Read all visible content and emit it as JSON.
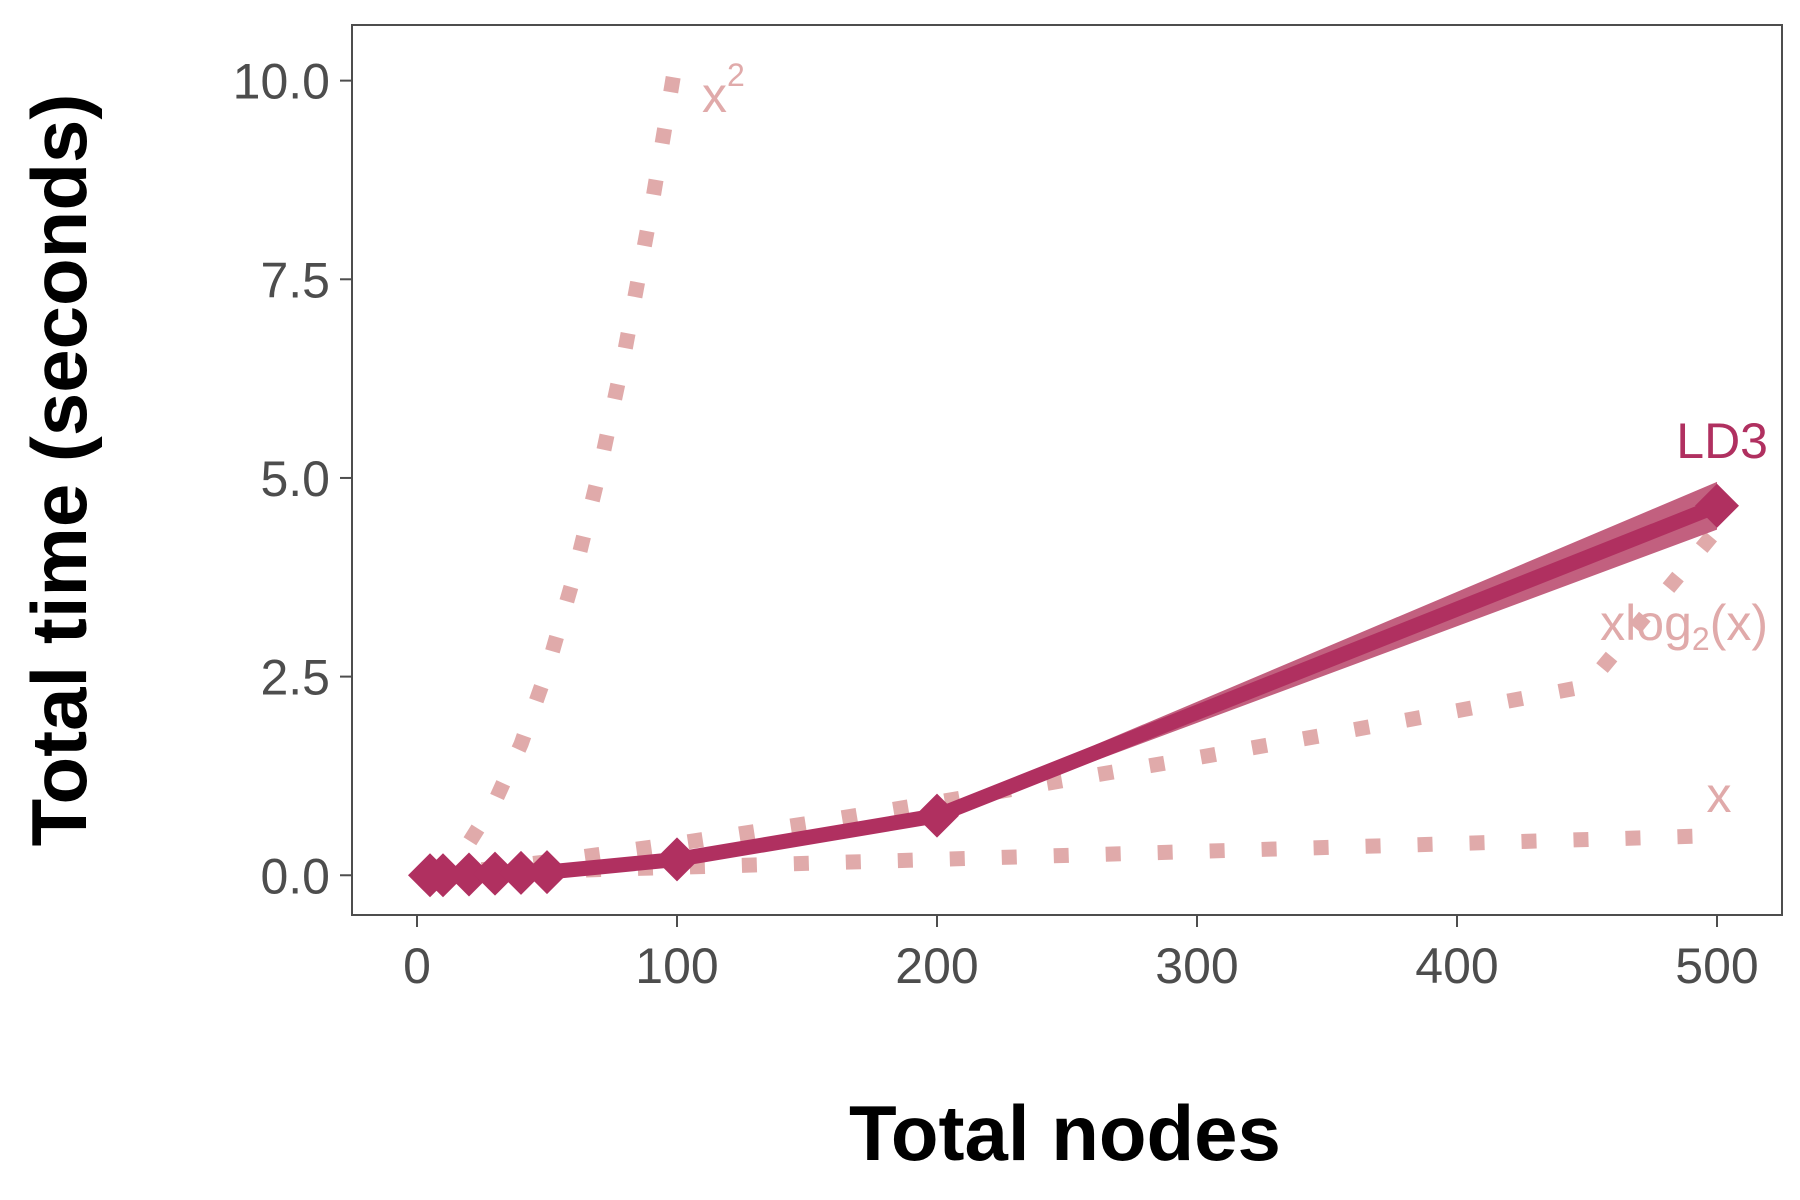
{
  "chart_data": {
    "type": "line",
    "title": "",
    "xlabel": "Total nodes",
    "ylabel": "Total time (seconds)",
    "xlim": [
      -25,
      525
    ],
    "ylim": [
      -0.5,
      10.7
    ],
    "x_ticks": [
      0,
      100,
      200,
      300,
      400,
      500
    ],
    "x_tick_labels": [
      "0",
      "100",
      "200",
      "300",
      "400",
      "500"
    ],
    "y_ticks": [
      0,
      2.5,
      5,
      7.5,
      10
    ],
    "y_tick_labels": [
      "0.0",
      "2.5",
      "5.0",
      "7.5",
      "10.0"
    ],
    "grid": false,
    "legend": "none",
    "series": [
      {
        "name": "LD3",
        "style": "solid-with-diamond-markers-and-ribbon",
        "color": "#b03060",
        "ribbon_color": "#c2607f",
        "x": [
          5,
          10,
          20,
          30,
          40,
          50,
          100,
          200,
          500
        ],
        "y": [
          0.0,
          0.0,
          0.01,
          0.02,
          0.03,
          0.04,
          0.2,
          0.75,
          4.65
        ],
        "ribbon_lower": [
          0.0,
          0.0,
          0.0,
          0.01,
          0.02,
          0.03,
          0.17,
          0.7,
          4.35
        ],
        "ribbon_upper": [
          0.0,
          0.01,
          0.02,
          0.03,
          0.04,
          0.05,
          0.23,
          0.8,
          4.95
        ]
      },
      {
        "name": "x²",
        "style": "dotted",
        "color": "#e0aaaa",
        "x": [
          5,
          10,
          20,
          30,
          40,
          50,
          60,
          70,
          80,
          90,
          100
        ],
        "y": [
          0.02,
          0.1,
          0.41,
          0.93,
          1.65,
          2.58,
          3.72,
          5.06,
          6.61,
          8.37,
          10.33
        ]
      },
      {
        "name": "xlog₂(x)",
        "style": "dotted",
        "color": "#e0aaaa",
        "x": [
          5,
          10,
          20,
          50,
          100,
          150,
          200,
          250,
          300,
          350,
          400,
          450,
          500
        ],
        "y": [
          0.01,
          0.02,
          0.05,
          0.17,
          0.4,
          0.65,
          0.92,
          1.2,
          1.48,
          1.77,
          2.07,
          2.38,
          4.35
        ]
      },
      {
        "name": "x",
        "style": "dotted",
        "color": "#e0aaaa",
        "x": [
          5,
          100,
          200,
          300,
          400,
          500
        ],
        "y": [
          0.01,
          0.1,
          0.2,
          0.3,
          0.4,
          0.5
        ]
      }
    ],
    "annotations": {
      "ld3": {
        "base": "LD3",
        "color": "#b03060"
      },
      "x_squared": {
        "base": "x",
        "superscript": "2",
        "color": "#e0aaaa"
      },
      "xlog2": {
        "base": "xlog",
        "subscript": "2",
        "suffix": "(x)",
        "color": "#e0aaaa"
      },
      "x_linear": {
        "base": "x",
        "color": "#e0aaaa"
      }
    }
  }
}
